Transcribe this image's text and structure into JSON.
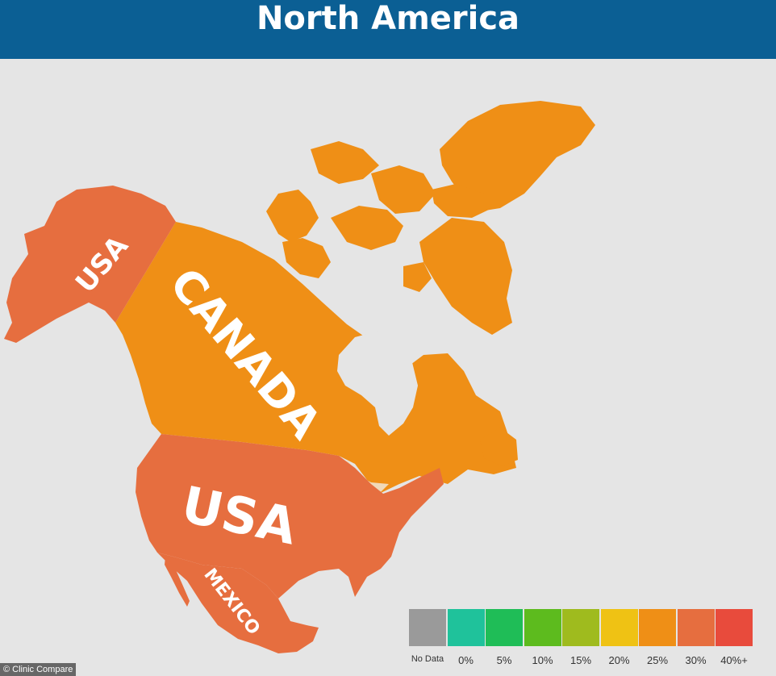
{
  "title": "North America",
  "regions": [
    {
      "id": "canada",
      "label": "CANADA",
      "category": "25%",
      "color": "#ef8f16"
    },
    {
      "id": "usa",
      "label": "USA",
      "category": "30%",
      "color": "#e66e3f"
    },
    {
      "id": "alaska",
      "label": "USA",
      "category": "30%",
      "color": "#e66e3f"
    },
    {
      "id": "mexico",
      "label": "MEXICO",
      "category": "30%",
      "color": "#e66e3f"
    }
  ],
  "legend": {
    "items": [
      {
        "label": "No Data",
        "color": "#9a9a9a"
      },
      {
        "label": "0%",
        "color": "#1fc29b"
      },
      {
        "label": "5%",
        "color": "#1fbd57"
      },
      {
        "label": "10%",
        "color": "#5dbb1e"
      },
      {
        "label": "15%",
        "color": "#9fbb1e"
      },
      {
        "label": "20%",
        "color": "#efc214"
      },
      {
        "label": "25%",
        "color": "#ef8f16"
      },
      {
        "label": "30%",
        "color": "#e66e3f"
      },
      {
        "label": "40%+",
        "color": "#e84b3c"
      }
    ]
  },
  "credit": "© Clinic Compare",
  "colors": {
    "header": "#0b5f94",
    "background": "#e5e5e5",
    "lakes": "#e5e5e5",
    "great_lakes": "#f0d9b8"
  }
}
